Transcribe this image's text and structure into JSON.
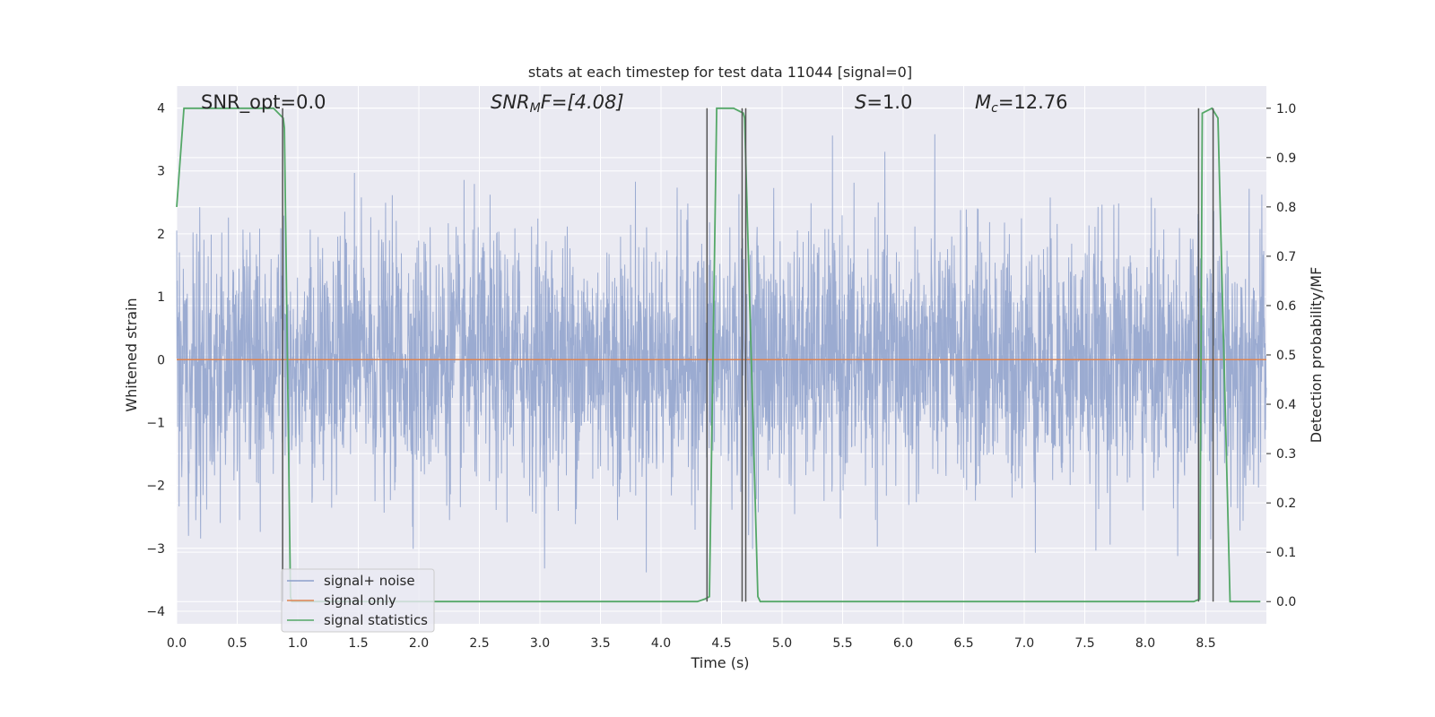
{
  "chart_data": {
    "type": "line",
    "title": "stats at each timestep for test data 11044 [signal=0]",
    "xlabel": "Time (s)",
    "ylabel": "Whitened strain",
    "ylabel_right": "Detection probability/MF",
    "xlim": [
      0.0,
      9.0
    ],
    "ylim": [
      -4.2,
      4.35
    ],
    "ylim_right": [
      -0.045,
      1.045
    ],
    "x_ticks": [
      "0.0",
      "0.5",
      "1.0",
      "1.5",
      "2.0",
      "2.5",
      "3.0",
      "3.5",
      "4.0",
      "4.5",
      "5.0",
      "5.5",
      "6.0",
      "6.5",
      "7.0",
      "7.5",
      "8.0",
      "8.5"
    ],
    "y_ticks": [
      "4",
      "3",
      "2",
      "1",
      "0",
      "−1",
      "−2",
      "−3",
      "−4"
    ],
    "y_ticks_right": [
      "1.0",
      "0.9",
      "0.8",
      "0.7",
      "0.6",
      "0.5",
      "0.4",
      "0.3",
      "0.2",
      "0.1",
      "0.0"
    ],
    "annotations": {
      "snr_opt": "SNR_opt=0.0",
      "snr_mf_main": "SNR",
      "snr_mf_sub": "M",
      "snr_mf_rest": "F=[4.08]",
      "s_main": "S",
      "s_rest": "=1.0",
      "mc_main": "M",
      "mc_sub": "c",
      "mc_rest": "=12.76"
    },
    "legend": {
      "position": "lower-left",
      "entries": [
        "signal+ noise",
        "signal only",
        "signal statistics"
      ]
    },
    "colors": {
      "noise": "#8da0cb",
      "signal": "#dd8452",
      "statistics": "#55a868",
      "markers": "#555555",
      "background": "#eaeaf2",
      "grid": "#ffffff"
    },
    "series": [
      {
        "name": "signal+ noise",
        "description_of_values": "whitened strain noise, approx. Gaussian, sigma ~1, range about -3.7 to 3.7",
        "x_range": [
          0.0,
          9.0
        ],
        "values_upper_envelope_typical": 2.0,
        "values_lower_envelope_typical": -2.0
      },
      {
        "name": "signal only",
        "x": [
          0.0,
          9.0
        ],
        "y": [
          0.0,
          0.0
        ]
      },
      {
        "name": "signal statistics",
        "axis": "right",
        "x": [
          0.0,
          0.06,
          0.12,
          0.8,
          0.88,
          0.89,
          0.94,
          0.95,
          4.3,
          4.36,
          4.4,
          4.46,
          4.6,
          4.68,
          4.69,
          4.8,
          4.82,
          8.4,
          8.45,
          8.47,
          8.55,
          8.6,
          8.7,
          8.95
        ],
        "y": [
          0.8,
          1.0,
          1.0,
          1.0,
          0.98,
          0.96,
          0.01,
          0.0,
          0.0,
          0.005,
          0.01,
          1.0,
          1.0,
          0.99,
          0.98,
          0.01,
          0.0,
          0.0,
          0.005,
          0.99,
          1.0,
          0.98,
          0.0,
          0.0
        ]
      }
    ],
    "vertical_markers_x": [
      0.875,
      4.38,
      4.67,
      4.7,
      8.44,
      8.56
    ]
  }
}
